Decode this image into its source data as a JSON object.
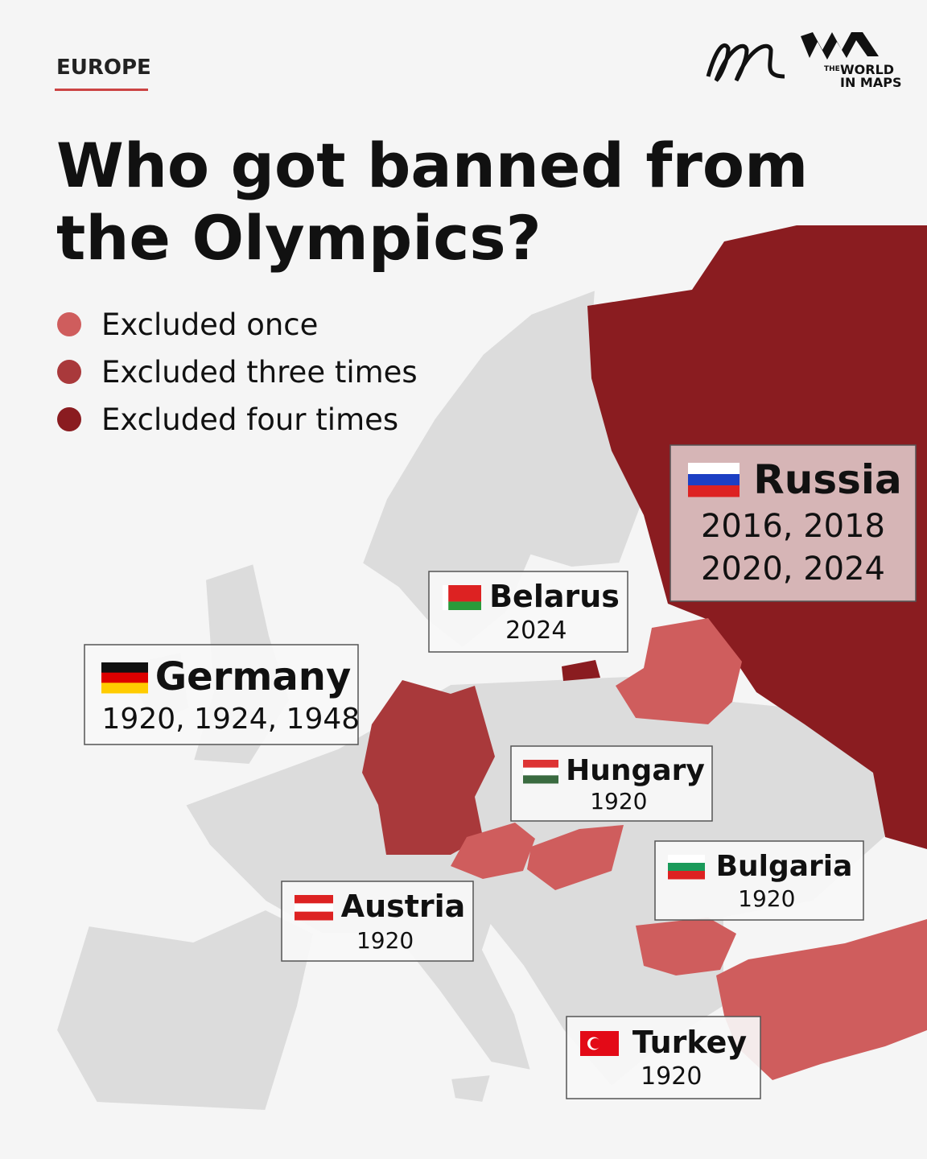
{
  "header": {
    "section": "EUROPE",
    "title_lines": [
      "Who got banned from",
      "the Olympics?"
    ],
    "brand": {
      "small": "THE",
      "lines": [
        "WORLD",
        "IN MAPS"
      ]
    }
  },
  "legend": [
    {
      "label": "Excluded once",
      "color": "#cf5d5d"
    },
    {
      "label": "Excluded three times",
      "color": "#a9393b"
    },
    {
      "label": "Excluded four times",
      "color": "#8a1c20"
    }
  ],
  "countries": [
    {
      "name": "Russia",
      "years": [
        "2016, 2018",
        "2020, 2024"
      ],
      "level": 2
    },
    {
      "name": "Belarus",
      "years": [
        "2024"
      ],
      "level": 0
    },
    {
      "name": "Germany",
      "years": [
        "1920, 1924, 1948"
      ],
      "level": 1
    },
    {
      "name": "Hungary",
      "years": [
        "1920"
      ],
      "level": 0
    },
    {
      "name": "Bulgaria",
      "years": [
        "1920"
      ],
      "level": 0
    },
    {
      "name": "Austria",
      "years": [
        "1920"
      ],
      "level": 0
    },
    {
      "name": "Turkey",
      "years": [
        "1920"
      ],
      "level": 0
    }
  ]
}
